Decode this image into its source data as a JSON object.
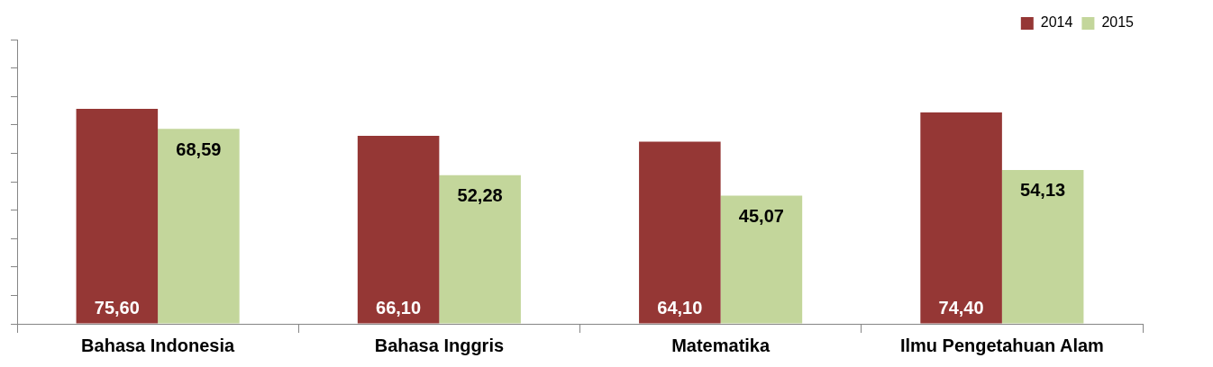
{
  "chart_data": {
    "type": "bar",
    "categories": [
      "Bahasa Indonesia",
      "Bahasa Inggris",
      "Matematika",
      "Ilmu Pengetahuan Alam"
    ],
    "series": [
      {
        "name": "2014",
        "color": "#953735",
        "values": [
          75.6,
          66.1,
          64.1,
          74.4
        ],
        "value_labels": [
          "75,60",
          "66,10",
          "64,10",
          "74,40"
        ]
      },
      {
        "name": "2015",
        "color": "#c3d69b",
        "values": [
          68.59,
          52.28,
          45.07,
          54.13
        ],
        "value_labels": [
          "68,59",
          "52,28",
          "45,07",
          "54,13"
        ]
      }
    ],
    "ylim": [
      0,
      100
    ],
    "yticks": [
      {
        "value": 0,
        "label": null
      },
      {
        "value": 10,
        "label": null
      },
      {
        "value": 20,
        "label": null
      },
      {
        "value": 30,
        "label": null
      },
      {
        "value": 40,
        "label": null
      },
      {
        "value": 50,
        "label": null
      },
      {
        "value": 60,
        "label": null
      },
      {
        "value": 70,
        "label": null
      },
      {
        "value": 80,
        "label": null
      },
      {
        "value": 90,
        "label": null
      },
      {
        "value": 100,
        "label": null
      }
    ],
    "tick_labels": "x",
    "grid": false,
    "legend": "top right"
  }
}
